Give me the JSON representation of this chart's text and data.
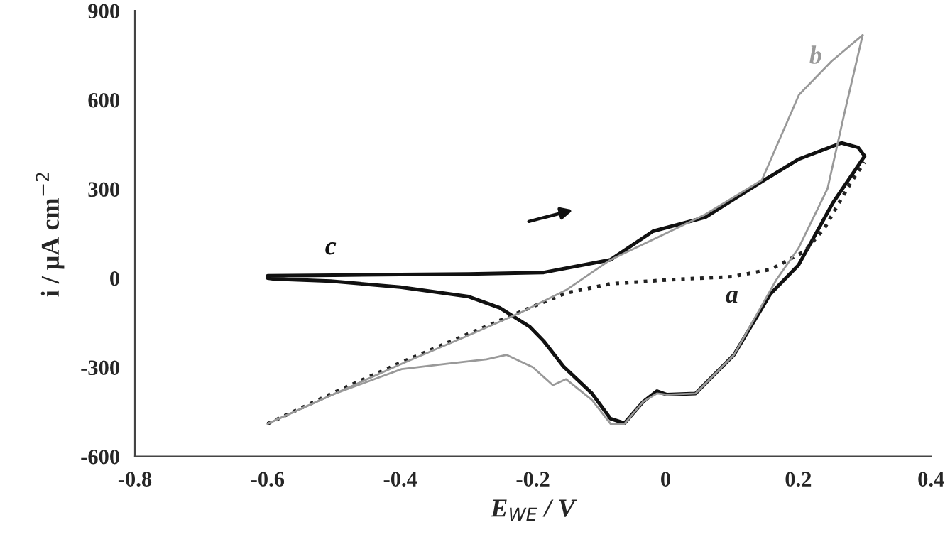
{
  "chart_data": {
    "type": "line",
    "xlabel": "E$_{WE}$ / V",
    "ylabel": "i / μA cm$^{−2}$",
    "xlim": [
      -0.8,
      0.4
    ],
    "ylim": [
      -600,
      900
    ],
    "xticks": [
      -0.8,
      -0.6,
      -0.4,
      -0.2,
      0,
      0.2,
      0.4
    ],
    "yticks": [
      -600,
      -300,
      0,
      300,
      600,
      900
    ],
    "grid": false,
    "legend": false,
    "series": [
      {
        "name": "b",
        "color": "#999999",
        "line_style": "solid",
        "x": [
          -0.6,
          -0.5,
          -0.4,
          -0.3,
          -0.218,
          -0.15,
          -0.083,
          0,
          0.06,
          0.145,
          0.201,
          0.25,
          0.297
        ],
        "values": [
          -490,
          -390,
          -290,
          -195,
          -115,
          -40,
          62,
          150,
          215,
          330,
          617,
          730,
          818
        ]
      },
      {
        "color": "#999999",
        "line_style": "solid",
        "x": [
          0.297,
          0.27,
          0.244,
          0.2,
          0.167,
          0.103,
          0.045,
          0.002,
          -0.013,
          -0.034,
          -0.062,
          -0.083,
          -0.111,
          -0.15,
          -0.17,
          -0.2,
          -0.24,
          -0.27,
          -0.33,
          -0.398,
          -0.5,
          -0.6
        ],
        "values": [
          818,
          560,
          301,
          100,
          -5,
          -258,
          -388,
          -392,
          -388,
          -416,
          -490,
          -490,
          -410,
          -340,
          -360,
          -300,
          -258,
          -273,
          -288,
          -306,
          -390,
          -490
        ]
      },
      {
        "name": "a",
        "color": "#222222",
        "line_style": "dotted",
        "x": [
          -0.6,
          -0.5,
          -0.4,
          -0.3,
          -0.205,
          -0.15,
          -0.083,
          0.008,
          0.1,
          0.158,
          0.21,
          0.24,
          0.265,
          0.287,
          0.3
        ],
        "values": [
          -490,
          -385,
          -285,
          -190,
          -100,
          -50,
          -19,
          -5,
          5,
          29,
          91,
          170,
          268,
          349,
          390
        ]
      },
      {
        "name": "c",
        "color": "#111111",
        "line_style": "solid",
        "x": [
          -0.6,
          -0.5,
          -0.4,
          -0.297,
          -0.184,
          -0.083,
          -0.019,
          0.06,
          0.145,
          0.2,
          0.265,
          0.29,
          0.3,
          0.252,
          0.2,
          0.158,
          0.103,
          0.045,
          0.002,
          -0.013,
          -0.034,
          -0.062,
          -0.083,
          -0.111,
          -0.154,
          -0.184,
          -0.205,
          -0.25,
          -0.297,
          -0.4,
          -0.505,
          -0.59,
          -0.6
        ],
        "values": [
          8,
          10,
          12,
          14,
          19,
          62,
          158,
          205,
          325,
          400,
          455,
          440,
          411,
          253,
          43,
          -53,
          -258,
          -388,
          -392,
          -380,
          -416,
          -488,
          -473,
          -388,
          -297,
          -211,
          -163,
          -100,
          -62,
          -30,
          -10,
          -3,
          0
        ]
      }
    ]
  }
}
